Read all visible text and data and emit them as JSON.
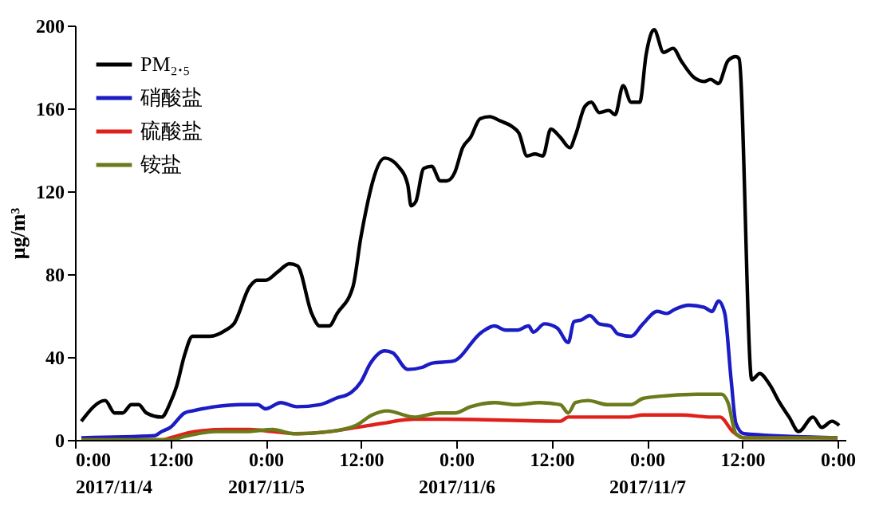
{
  "chart_data": {
    "type": "line",
    "ylabel": "μg/m³",
    "ylim": [
      0,
      200
    ],
    "yticks": [
      0,
      40,
      80,
      120,
      160,
      200
    ],
    "xlim": [
      "2017-11-04T00:00",
      "2017-11-08T01:00"
    ],
    "xticks": [
      {
        "value": "2017-11-04T00:00",
        "label": "0:00\n2017/11/4"
      },
      {
        "value": "2017-11-04T12:00",
        "label": "12:00"
      },
      {
        "value": "2017-11-05T00:00",
        "label": "0:00\n2017/11/5"
      },
      {
        "value": "2017-11-05T12:00",
        "label": "12:00"
      },
      {
        "value": "2017-11-06T00:00",
        "label": "0:00\n2017/11/6"
      },
      {
        "value": "2017-11-06T12:00",
        "label": "12:00"
      },
      {
        "value": "2017-11-07T00:00",
        "label": "0:00\n2017/11/7"
      },
      {
        "value": "2017-11-07T12:00",
        "label": "12:00"
      },
      {
        "value": "2017-11-08T00:00",
        "label": "0:00"
      }
    ],
    "grid": false,
    "legend": "top left",
    "line_style": "solid",
    "series": [
      {
        "name": "PM₂.₅",
        "color": "#000000",
        "x": [
          "2017-11-04T00:48",
          "2017-11-04T03:48",
          "2017-11-04T05:00",
          "2017-11-04T06:00",
          "2017-11-04T07:06",
          "2017-11-04T08:00",
          "2017-11-04T09:00",
          "2017-11-04T10:54",
          "2017-11-04T12:00",
          "2017-11-04T12:48",
          "2017-11-04T13:48",
          "2017-11-04T14:48",
          "2017-11-04T17:00",
          "2017-11-04T19:00",
          "2017-11-04T20:00",
          "2017-11-04T22:00",
          "2017-11-04T22:54",
          "2017-11-05T00:00",
          "2017-11-05T01:30",
          "2017-11-05T03:00",
          "2017-11-05T04:00",
          "2017-11-05T05:48",
          "2017-11-05T06:48",
          "2017-11-05T08:00",
          "2017-11-05T09:00",
          "2017-11-05T11:00",
          "2017-11-05T12:00",
          "2017-11-05T15:00",
          "2017-11-05T16:42",
          "2017-11-05T17:54",
          "2017-11-05T18:18",
          "2017-11-05T18:54",
          "2017-11-05T19:54",
          "2017-11-05T20:54",
          "2017-11-05T22:00",
          "2017-11-05T22:48",
          "2017-11-05T23:48",
          "2017-11-06T00:48",
          "2017-11-06T01:48",
          "2017-11-06T03:00",
          "2017-11-06T04:12",
          "2017-11-06T05:30",
          "2017-11-06T07:06",
          "2017-11-06T07:54",
          "2017-11-06T08:54",
          "2017-11-06T09:54",
          "2017-11-06T10:54",
          "2017-11-06T11:54",
          "2017-11-06T13:06",
          "2017-11-06T14:18",
          "2017-11-06T15:00",
          "2017-11-06T16:12",
          "2017-11-06T17:00",
          "2017-11-06T18:00",
          "2017-11-06T19:12",
          "2017-11-06T20:00",
          "2017-11-06T21:00",
          "2017-11-06T22:00",
          "2017-11-06T23:06",
          "2017-11-06T23:54",
          "2017-11-07T00:54",
          "2017-11-07T02:06",
          "2017-11-07T03:18",
          "2017-11-07T04:18",
          "2017-11-07T05:54",
          "2017-11-07T07:12",
          "2017-11-07T08:00",
          "2017-11-07T09:00",
          "2017-11-07T10:12",
          "2017-11-07T11:12",
          "2017-11-07T11:36",
          "2017-11-07T13:12",
          "2017-11-07T14:12",
          "2017-11-07T15:24",
          "2017-11-07T16:42",
          "2017-11-07T17:54",
          "2017-11-07T19:06",
          "2017-11-07T20:54",
          "2017-11-07T22:00",
          "2017-11-07T23:18",
          "2017-11-08T00:12"
        ],
        "values": [
          9,
          19,
          13,
          13,
          17,
          17,
          13,
          11,
          18,
          26,
          41,
          50,
          50,
          53,
          56,
          74,
          77,
          77,
          81,
          85,
          84,
          61,
          55,
          55,
          61,
          74,
          98,
          136,
          132,
          123,
          113,
          115,
          131,
          132,
          125,
          125,
          129,
          141,
          146,
          155,
          156,
          154,
          151,
          148,
          137,
          138,
          137,
          150,
          146,
          141,
          147,
          161,
          163,
          158,
          159,
          157,
          171,
          163,
          163,
          186,
          198,
          187,
          189,
          183,
          175,
          173,
          174,
          172,
          183,
          185,
          184,
          29,
          32,
          27,
          18,
          11,
          4,
          11,
          6,
          9,
          7
        ]
      },
      {
        "name": "硝酸盐",
        "color": "#1c1cc4",
        "x": [
          "2017-11-04T00:48",
          "2017-11-04T10:00",
          "2017-11-04T10:54",
          "2017-11-04T12:00",
          "2017-11-04T13:48",
          "2017-11-04T14:48",
          "2017-11-04T17:36",
          "2017-11-04T21:00",
          "2017-11-04T23:00",
          "2017-11-05T00:00",
          "2017-11-05T01:54",
          "2017-11-05T03:54",
          "2017-11-05T06:48",
          "2017-11-05T08:48",
          "2017-11-05T10:48",
          "2017-11-05T12:00",
          "2017-11-05T13:12",
          "2017-11-05T15:00",
          "2017-11-05T16:00",
          "2017-11-05T17:54",
          "2017-11-05T19:42",
          "2017-11-05T20:54",
          "2017-11-05T23:36",
          "2017-11-06T03:12",
          "2017-11-06T04:48",
          "2017-11-06T06:12",
          "2017-11-06T07:42",
          "2017-11-06T09:06",
          "2017-11-06T09:42",
          "2017-11-06T11:06",
          "2017-11-06T12:42",
          "2017-11-06T14:06",
          "2017-11-06T14:48",
          "2017-11-06T15:48",
          "2017-11-06T16:48",
          "2017-11-06T18:00",
          "2017-11-06T19:24",
          "2017-11-06T20:24",
          "2017-11-06T22:00",
          "2017-11-06T23:30",
          "2017-11-07T01:18",
          "2017-11-07T02:30",
          "2017-11-07T03:30",
          "2017-11-07T05:18",
          "2017-11-07T07:12",
          "2017-11-07T08:12",
          "2017-11-07T09:00",
          "2017-11-07T09:48",
          "2017-11-07T10:36",
          "2017-11-07T11:12",
          "2017-11-07T12:12",
          "2017-11-08T00:00"
        ],
        "values": [
          1,
          2,
          4,
          6,
          13,
          14,
          16,
          17,
          17,
          15,
          18,
          16,
          17,
          20,
          23,
          28,
          37,
          43,
          42,
          34,
          35,
          37,
          38,
          52,
          55,
          53,
          53,
          55,
          52,
          56,
          54,
          47,
          57,
          58,
          60,
          56,
          55,
          51,
          50,
          56,
          62,
          61,
          63,
          65,
          64,
          62,
          67,
          61,
          29,
          8,
          3,
          1
        ]
      },
      {
        "name": "硫酸盐",
        "color": "#e0201a",
        "x": [
          "2017-11-04T00:48",
          "2017-11-04T11:00",
          "2017-11-04T12:00",
          "2017-11-04T15:00",
          "2017-11-04T19:00",
          "2017-11-04T22:00",
          "2017-11-05T00:54",
          "2017-11-05T04:00",
          "2017-11-05T08:00",
          "2017-11-05T11:24",
          "2017-11-05T14:42",
          "2017-11-05T18:42",
          "2017-11-05T22:36",
          "2017-11-06T13:06",
          "2017-11-06T14:06",
          "2017-11-06T21:36",
          "2017-11-06T23:30",
          "2017-11-07T04:18",
          "2017-11-07T08:12",
          "2017-11-07T09:12",
          "2017-11-07T10:48",
          "2017-11-07T12:12",
          "2017-11-08T00:00"
        ],
        "values": [
          0,
          0,
          1,
          4,
          5,
          5,
          4,
          3,
          4,
          6,
          8,
          10,
          10,
          9,
          11,
          11,
          12,
          12,
          11,
          11,
          4,
          1,
          1
        ]
      },
      {
        "name": "铵盐",
        "color": "#6b7a1a",
        "x": [
          "2017-11-04T00:48",
          "2017-11-04T11:42",
          "2017-11-04T14:12",
          "2017-11-04T17:36",
          "2017-11-04T21:30",
          "2017-11-05T00:54",
          "2017-11-05T03:30",
          "2017-11-05T08:00",
          "2017-11-05T11:24",
          "2017-11-05T13:24",
          "2017-11-05T15:18",
          "2017-11-05T18:42",
          "2017-11-05T21:48",
          "2017-11-05T23:48",
          "2017-11-06T01:48",
          "2017-11-06T04:48",
          "2017-11-06T07:30",
          "2017-11-06T10:30",
          "2017-11-06T13:06",
          "2017-11-06T14:06",
          "2017-11-06T15:00",
          "2017-11-06T16:36",
          "2017-11-06T19:00",
          "2017-11-06T22:00",
          "2017-11-06T23:30",
          "2017-11-07T01:30",
          "2017-11-07T06:18",
          "2017-11-07T09:24",
          "2017-11-07T10:12",
          "2017-11-07T11:12",
          "2017-11-07T12:12",
          "2017-11-08T00:00"
        ],
        "values": [
          0,
          0,
          2,
          4,
          4,
          5,
          3,
          4,
          7,
          12,
          14,
          11,
          13,
          13,
          16,
          18,
          17,
          18,
          17,
          13,
          18,
          19,
          17,
          17,
          20,
          21,
          22,
          22,
          18,
          3,
          1,
          1
        ]
      }
    ]
  }
}
